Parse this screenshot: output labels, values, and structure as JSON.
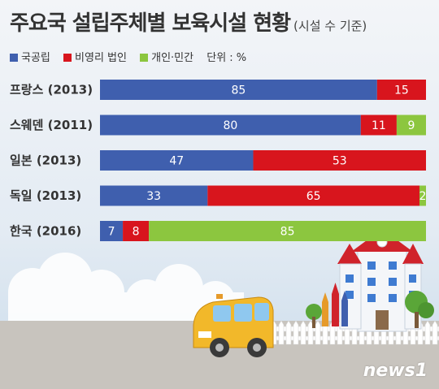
{
  "header": {
    "title": "주요국 설립주체별 보육시설 현황",
    "subtitle": "(시설 수 기준)"
  },
  "legend": {
    "unit": "단위 : %"
  },
  "brand": "news1",
  "chart_data": {
    "type": "bar",
    "orientation": "horizontal",
    "stacked": true,
    "title": "주요국 설립주체별 보육시설 현황",
    "subtitle": "(시설 수 기준)",
    "unit": "단위 : %",
    "xlim": [
      0,
      100
    ],
    "grid": false,
    "legend_position": "top-left",
    "categories": [
      "프랑스 (2013)",
      "스웨덴 (2011)",
      "일본 (2013)",
      "독일 (2013)",
      "한국 (2016)"
    ],
    "series": [
      {
        "name": "국공립",
        "color": "#3f5fae",
        "values": [
          85,
          80,
          47,
          33,
          7
        ]
      },
      {
        "name": "비영리 법인",
        "color": "#d8151d",
        "values": [
          15,
          11,
          53,
          65,
          8
        ]
      },
      {
        "name": "개인·민간",
        "color": "#8cc63f",
        "values": [
          0,
          9,
          0,
          2,
          85
        ]
      }
    ]
  }
}
